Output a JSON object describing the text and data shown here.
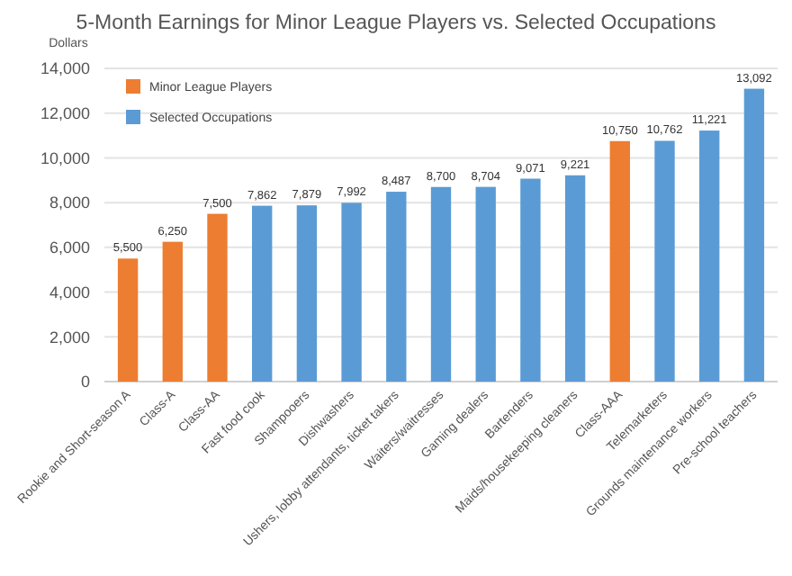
{
  "chart_data": {
    "type": "bar",
    "title": "5-Month Earnings for Minor League Players vs. Selected Occupations",
    "ylabel": "Dollars",
    "categories": [
      "Rookie and Short-season A",
      "Class-A",
      "Class-AA",
      "Fast food cook",
      "Shampooers",
      "Dishwashers",
      "Ushers, lobby attendants, ticket takers",
      "Waiters/waitresses",
      "Gaming dealers",
      "Bartenders",
      "Maids/housekeeping cleaners",
      "Class-AAA",
      "Telemarketers",
      "Grounds maintenance workers",
      "Pre-school teachers"
    ],
    "series": [
      {
        "name": "Minor League Players",
        "color": "#ed7d31",
        "values": [
          5500,
          6250,
          7500,
          null,
          null,
          null,
          null,
          null,
          null,
          null,
          null,
          10750,
          null,
          null,
          null
        ],
        "value_labels": [
          "5,500",
          "6,250",
          "7,500",
          null,
          null,
          null,
          null,
          null,
          null,
          null,
          null,
          "10,750",
          null,
          null,
          null
        ]
      },
      {
        "name": "Selected Occupations",
        "color": "#5b9bd5",
        "values": [
          null,
          null,
          null,
          7862,
          7879,
          7992,
          8487,
          8700,
          8704,
          9071,
          9221,
          null,
          10762,
          11221,
          13092
        ],
        "value_labels": [
          null,
          null,
          null,
          "7,862",
          "7,879",
          "7,992",
          "8,487",
          "8,700",
          "8,704",
          "9,071",
          "9,221",
          null,
          "10,762",
          "11,221",
          "13,092"
        ]
      }
    ],
    "ylim": [
      0,
      14000
    ],
    "yticks": [
      {
        "value": 0,
        "label": "0"
      },
      {
        "value": 2000,
        "label": "2,000"
      },
      {
        "value": 4000,
        "label": "4,000"
      },
      {
        "value": 6000,
        "label": "6,000"
      },
      {
        "value": 8000,
        "label": "8,000"
      },
      {
        "value": 10000,
        "label": "10,000"
      },
      {
        "value": 12000,
        "label": "12,000"
      },
      {
        "value": 14000,
        "label": "14,000"
      }
    ],
    "grid": "y",
    "legend": "top left"
  }
}
